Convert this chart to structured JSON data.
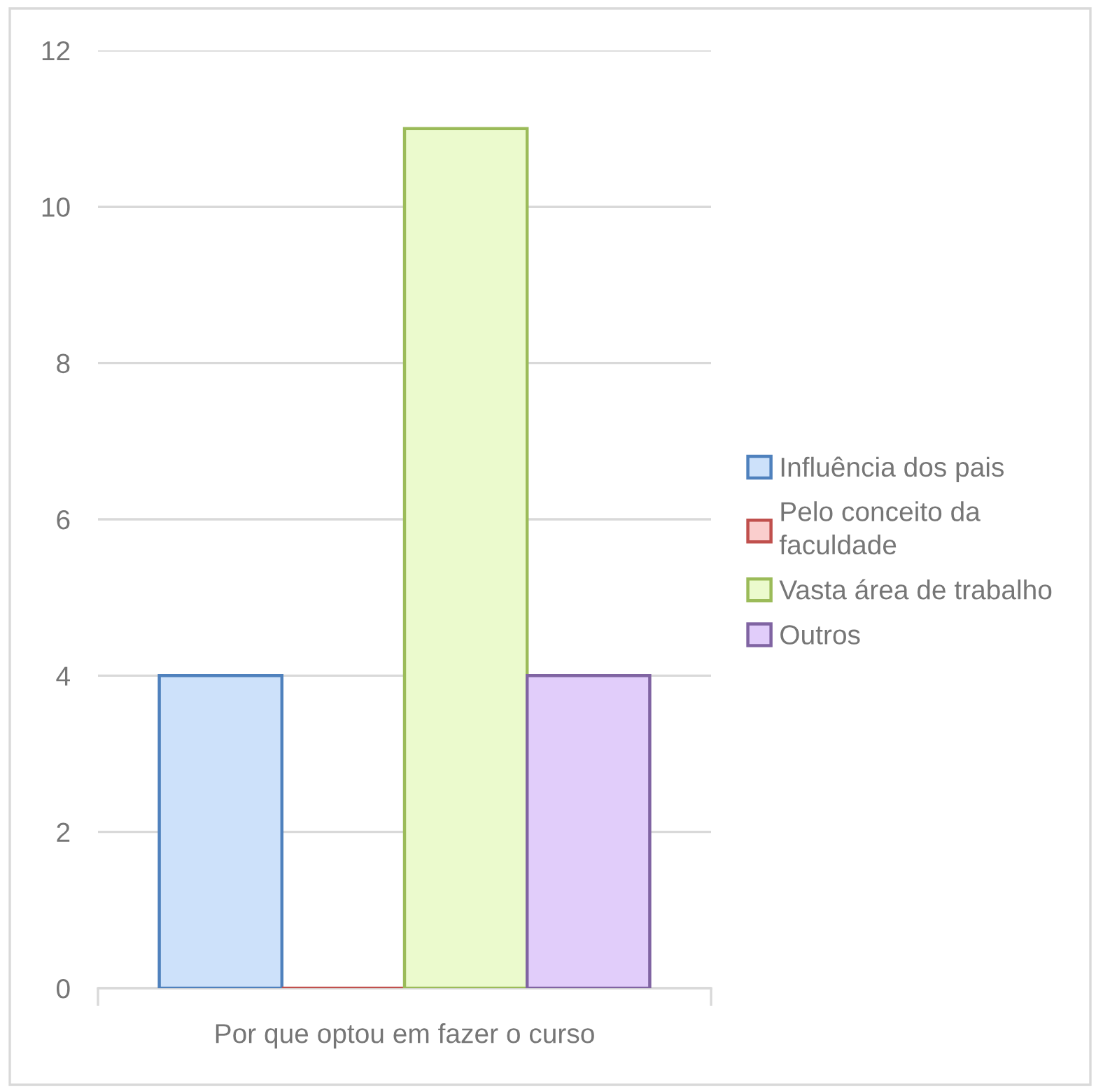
{
  "chart_data": {
    "type": "bar",
    "categories": [
      "Por que optou em fazer o curso"
    ],
    "series": [
      {
        "name": "Influência dos pais",
        "color": "#4f81bd",
        "values": [
          4
        ]
      },
      {
        "name": "Pelo conceito da faculdade",
        "color": "#c0504d",
        "values": [
          0
        ]
      },
      {
        "name": "Vasta área de trabalho",
        "color": "#9bbb59",
        "values": [
          11
        ]
      },
      {
        "name": "Outros",
        "color": "#8064a2",
        "values": [
          4
        ]
      }
    ],
    "ylim": [
      0,
      12
    ],
    "yticks": [
      0,
      2,
      4,
      6,
      8,
      10,
      12
    ],
    "grid": "y",
    "legend": "right"
  }
}
